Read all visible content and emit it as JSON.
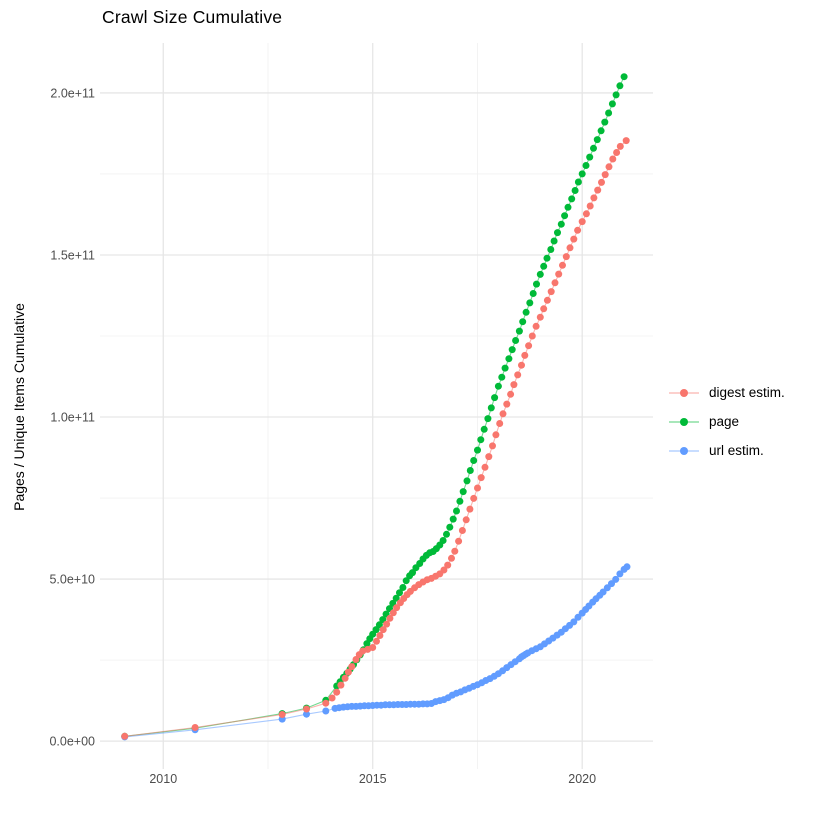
{
  "chart": {
    "title": "Crawl Size Cumulative",
    "ylabel": "Pages / Unique Items Cumulative"
  },
  "chart_data": {
    "type": "scatter",
    "title": "Crawl Size Cumulative",
    "xlabel": "",
    "ylabel": "Pages / Unique Items Cumulative",
    "grid": true,
    "legend_position": "right",
    "value_scale": 1000000000.0,
    "value_unit": "pages / unique items (values in billions)",
    "xlim": [
      2008.49,
      2021.69
    ],
    "ylim_e9": [
      -8.6,
      215.4
    ],
    "x_ticks": {
      "values": [
        2010,
        2015,
        2020
      ],
      "labels": [
        "2010",
        "2015",
        "2020"
      ]
    },
    "x_minor": [
      2012.5,
      2017.5
    ],
    "y_ticks": {
      "values_e9": [
        0,
        50,
        100,
        150,
        200
      ],
      "labels": [
        "0.0e+00",
        "5.0e+10",
        "1.0e+11",
        "1.5e+11",
        "2.0e+11"
      ]
    },
    "y_minor_e9": [
      25,
      75,
      125,
      175
    ],
    "draw_order": [
      "page",
      "url estim.",
      "digest estim."
    ],
    "series": [
      {
        "name": "digest estim.",
        "color": "#F8766D",
        "points": [
          [
            2009.08,
            1.5
          ],
          [
            2010.76,
            4.2
          ],
          [
            2012.84,
            8.2
          ],
          [
            2013.42,
            9.9
          ],
          [
            2013.88,
            11.7
          ],
          [
            2014.03,
            13.3
          ],
          [
            2014.14,
            15.1
          ],
          [
            2014.24,
            17.3
          ],
          [
            2014.34,
            19.4
          ],
          [
            2014.42,
            21.3
          ],
          [
            2014.5,
            23.0
          ],
          [
            2014.6,
            25.2
          ],
          [
            2014.68,
            26.7
          ],
          [
            2014.76,
            27.8
          ],
          [
            2014.88,
            28.3
          ],
          [
            2015.0,
            28.9
          ],
          [
            2015.09,
            30.8
          ],
          [
            2015.17,
            32.6
          ],
          [
            2015.25,
            34.4
          ],
          [
            2015.33,
            36.1
          ],
          [
            2015.41,
            37.9
          ],
          [
            2015.49,
            39.6
          ],
          [
            2015.57,
            41.2
          ],
          [
            2015.66,
            42.7
          ],
          [
            2015.74,
            44.0
          ],
          [
            2015.82,
            45.2
          ],
          [
            2015.9,
            46.2
          ],
          [
            2016.0,
            47.3
          ],
          [
            2016.1,
            48.3
          ],
          [
            2016.2,
            49.1
          ],
          [
            2016.3,
            49.8
          ],
          [
            2016.4,
            50.2
          ],
          [
            2016.5,
            50.9
          ],
          [
            2016.6,
            51.6
          ],
          [
            2016.7,
            52.8
          ],
          [
            2016.79,
            54.3
          ],
          [
            2016.88,
            56.4
          ],
          [
            2016.96,
            58.6
          ],
          [
            2017.05,
            61.7
          ],
          [
            2017.14,
            65.0
          ],
          [
            2017.23,
            68.3
          ],
          [
            2017.32,
            71.6
          ],
          [
            2017.41,
            74.9
          ],
          [
            2017.5,
            78.1
          ],
          [
            2017.59,
            81.3
          ],
          [
            2017.68,
            84.5
          ],
          [
            2017.77,
            87.8
          ],
          [
            2017.86,
            91.1
          ],
          [
            2017.94,
            94.5
          ],
          [
            2018.03,
            98.0
          ],
          [
            2018.11,
            101.0
          ],
          [
            2018.2,
            104.0
          ],
          [
            2018.29,
            107.0
          ],
          [
            2018.37,
            110.0
          ],
          [
            2018.46,
            113.0
          ],
          [
            2018.55,
            116.0
          ],
          [
            2018.63,
            119.0
          ],
          [
            2018.72,
            122.0
          ],
          [
            2018.81,
            125.0
          ],
          [
            2018.9,
            128.0
          ],
          [
            2019.0,
            130.8
          ],
          [
            2019.08,
            133.4
          ],
          [
            2019.17,
            136.0
          ],
          [
            2019.26,
            138.7
          ],
          [
            2019.35,
            141.4
          ],
          [
            2019.44,
            144.1
          ],
          [
            2019.53,
            146.8
          ],
          [
            2019.62,
            149.5
          ],
          [
            2019.71,
            152.2
          ],
          [
            2019.8,
            154.9
          ],
          [
            2019.89,
            157.6
          ],
          [
            2020.0,
            160.3
          ],
          [
            2020.1,
            162.7
          ],
          [
            2020.19,
            165.1
          ],
          [
            2020.28,
            167.6
          ],
          [
            2020.37,
            170.0
          ],
          [
            2020.46,
            172.4
          ],
          [
            2020.55,
            174.8
          ],
          [
            2020.64,
            177.2
          ],
          [
            2020.73,
            179.6
          ],
          [
            2020.82,
            181.6
          ],
          [
            2020.91,
            183.5
          ],
          [
            2021.05,
            185.3
          ]
        ]
      },
      {
        "name": "page",
        "color": "#00BA38",
        "points": [
          [
            2009.08,
            1.5
          ],
          [
            2010.76,
            4.0
          ],
          [
            2012.84,
            8.5
          ],
          [
            2013.42,
            10.2
          ],
          [
            2013.88,
            12.6
          ],
          [
            2014.14,
            17.0
          ],
          [
            2014.22,
            18.3
          ],
          [
            2014.3,
            19.7
          ],
          [
            2014.38,
            20.9
          ],
          [
            2014.46,
            22.2
          ],
          [
            2014.54,
            23.6
          ],
          [
            2014.62,
            25.1
          ],
          [
            2014.7,
            26.6
          ],
          [
            2014.78,
            28.2
          ],
          [
            2014.86,
            30.1
          ],
          [
            2014.93,
            31.6
          ],
          [
            2015.0,
            33.0
          ],
          [
            2015.08,
            34.4
          ],
          [
            2015.16,
            35.9
          ],
          [
            2015.24,
            37.5
          ],
          [
            2015.32,
            39.2
          ],
          [
            2015.4,
            40.9
          ],
          [
            2015.48,
            42.5
          ],
          [
            2015.56,
            44.1
          ],
          [
            2015.64,
            45.8
          ],
          [
            2015.72,
            47.4
          ],
          [
            2015.8,
            49.5
          ],
          [
            2015.88,
            51.0
          ],
          [
            2015.95,
            52.0
          ],
          [
            2016.03,
            53.5
          ],
          [
            2016.12,
            54.8
          ],
          [
            2016.2,
            56.2
          ],
          [
            2016.28,
            57.3
          ],
          [
            2016.36,
            58.1
          ],
          [
            2016.44,
            58.5
          ],
          [
            2016.52,
            59.4
          ],
          [
            2016.6,
            60.5
          ],
          [
            2016.68,
            61.9
          ],
          [
            2016.76,
            63.8
          ],
          [
            2016.84,
            66.0
          ],
          [
            2016.92,
            68.5
          ],
          [
            2017.0,
            71.0
          ],
          [
            2017.08,
            74.0
          ],
          [
            2017.16,
            77.0
          ],
          [
            2017.25,
            80.3
          ],
          [
            2017.33,
            83.5
          ],
          [
            2017.41,
            86.6
          ],
          [
            2017.5,
            89.8
          ],
          [
            2017.58,
            93.0
          ],
          [
            2017.66,
            96.2
          ],
          [
            2017.75,
            99.5
          ],
          [
            2017.83,
            102.8
          ],
          [
            2017.91,
            106.0
          ],
          [
            2018.0,
            109.5
          ],
          [
            2018.08,
            112.3
          ],
          [
            2018.16,
            115.1
          ],
          [
            2018.25,
            118.0
          ],
          [
            2018.33,
            120.8
          ],
          [
            2018.41,
            123.6
          ],
          [
            2018.5,
            126.5
          ],
          [
            2018.58,
            129.4
          ],
          [
            2018.66,
            132.3
          ],
          [
            2018.75,
            135.2
          ],
          [
            2018.83,
            138.1
          ],
          [
            2018.91,
            141.0
          ],
          [
            2019.0,
            144.0
          ],
          [
            2019.08,
            146.5
          ],
          [
            2019.16,
            149.0
          ],
          [
            2019.25,
            151.7
          ],
          [
            2019.33,
            154.3
          ],
          [
            2019.41,
            156.9
          ],
          [
            2019.5,
            159.5
          ],
          [
            2019.58,
            162.1
          ],
          [
            2019.66,
            164.7
          ],
          [
            2019.75,
            167.3
          ],
          [
            2019.83,
            169.9
          ],
          [
            2019.91,
            172.5
          ],
          [
            2020.0,
            175.0
          ],
          [
            2020.09,
            177.6
          ],
          [
            2020.18,
            180.2
          ],
          [
            2020.27,
            182.9
          ],
          [
            2020.36,
            185.6
          ],
          [
            2020.45,
            188.3
          ],
          [
            2020.54,
            191.0
          ],
          [
            2020.63,
            193.8
          ],
          [
            2020.72,
            196.6
          ],
          [
            2020.81,
            199.4
          ],
          [
            2020.9,
            202.2
          ],
          [
            2021.0,
            205.0
          ]
        ]
      },
      {
        "name": "url estim.",
        "color": "#619CFF",
        "points": [
          [
            2009.08,
            1.3
          ],
          [
            2010.76,
            3.5
          ],
          [
            2012.84,
            6.8
          ],
          [
            2013.42,
            8.3
          ],
          [
            2013.88,
            9.3
          ],
          [
            2014.1,
            10.1
          ],
          [
            2014.2,
            10.3
          ],
          [
            2014.3,
            10.5
          ],
          [
            2014.4,
            10.6
          ],
          [
            2014.5,
            10.7
          ],
          [
            2014.6,
            10.7
          ],
          [
            2014.7,
            10.8
          ],
          [
            2014.8,
            10.9
          ],
          [
            2014.9,
            10.9
          ],
          [
            2015.0,
            11.0
          ],
          [
            2015.1,
            11.1
          ],
          [
            2015.2,
            11.1
          ],
          [
            2015.3,
            11.2
          ],
          [
            2015.4,
            11.2
          ],
          [
            2015.5,
            11.2
          ],
          [
            2015.6,
            11.3
          ],
          [
            2015.7,
            11.3
          ],
          [
            2015.8,
            11.3
          ],
          [
            2015.9,
            11.4
          ],
          [
            2016.0,
            11.4
          ],
          [
            2016.1,
            11.4
          ],
          [
            2016.2,
            11.5
          ],
          [
            2016.3,
            11.5
          ],
          [
            2016.4,
            11.6
          ],
          [
            2016.5,
            12.2
          ],
          [
            2016.6,
            12.5
          ],
          [
            2016.7,
            12.8
          ],
          [
            2016.8,
            13.4
          ],
          [
            2016.9,
            14.2
          ],
          [
            2017.0,
            14.8
          ],
          [
            2017.1,
            15.2
          ],
          [
            2017.2,
            15.8
          ],
          [
            2017.3,
            16.3
          ],
          [
            2017.4,
            16.9
          ],
          [
            2017.5,
            17.4
          ],
          [
            2017.6,
            18.0
          ],
          [
            2017.7,
            18.7
          ],
          [
            2017.8,
            19.3
          ],
          [
            2017.9,
            20.0
          ],
          [
            2018.0,
            20.8
          ],
          [
            2018.1,
            21.7
          ],
          [
            2018.2,
            22.7
          ],
          [
            2018.3,
            23.6
          ],
          [
            2018.4,
            24.5
          ],
          [
            2018.5,
            25.4
          ],
          [
            2018.55,
            26.0
          ],
          [
            2018.6,
            26.4
          ],
          [
            2018.65,
            26.8
          ],
          [
            2018.7,
            27.2
          ],
          [
            2018.8,
            27.9
          ],
          [
            2018.9,
            28.5
          ],
          [
            2019.0,
            29.1
          ],
          [
            2019.1,
            30.0
          ],
          [
            2019.2,
            30.9
          ],
          [
            2019.3,
            31.8
          ],
          [
            2019.4,
            32.7
          ],
          [
            2019.5,
            33.6
          ],
          [
            2019.6,
            34.7
          ],
          [
            2019.7,
            35.7
          ],
          [
            2019.8,
            36.8
          ],
          [
            2019.9,
            38.2
          ],
          [
            2020.0,
            39.5
          ],
          [
            2020.08,
            40.6
          ],
          [
            2020.16,
            41.7
          ],
          [
            2020.25,
            42.9
          ],
          [
            2020.33,
            43.9
          ],
          [
            2020.42,
            45.0
          ],
          [
            2020.5,
            46.0
          ],
          [
            2020.6,
            47.3
          ],
          [
            2020.7,
            48.6
          ],
          [
            2020.8,
            49.9
          ],
          [
            2020.9,
            51.6
          ],
          [
            2021.0,
            53.0
          ],
          [
            2021.07,
            53.8
          ]
        ]
      }
    ]
  },
  "style": {
    "grid_major_color": "#E6E6E6",
    "grid_minor_color": "#F0F0F0",
    "tick_label_color": "#4D4D4D",
    "text_color": "#000000",
    "background": "#FFFFFF",
    "point_radius": 3.5,
    "line_opacity": 0.55
  }
}
